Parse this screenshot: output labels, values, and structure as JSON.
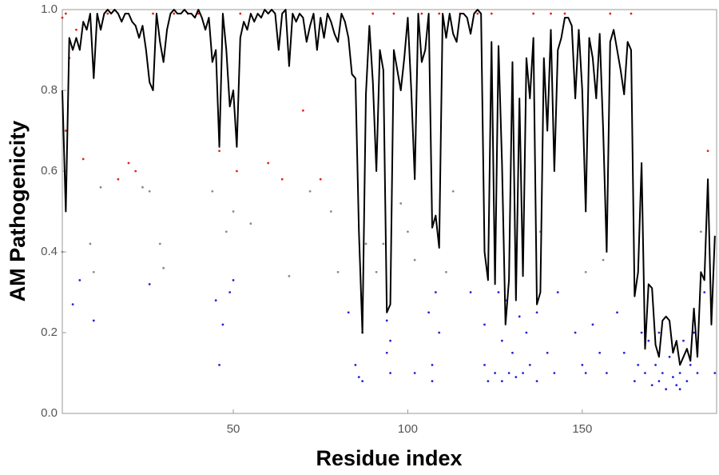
{
  "chart_data": {
    "type": "line_scatter",
    "x_label": "Residue index",
    "y_label": "AM Pathogenicity",
    "xlim": [
      1,
      188.5
    ],
    "ylim": [
      0,
      1
    ],
    "xticks": [
      50,
      100,
      150
    ],
    "yticks": [
      {
        "value": 0,
        "label": "0.0"
      },
      {
        "value": 0.2,
        "label": "0.2"
      },
      {
        "value": 0.4,
        "label": "0.4"
      },
      {
        "value": 0.6,
        "label": "0.6"
      },
      {
        "value": 0.8,
        "label": "0.8"
      },
      {
        "value": 1,
        "label": "1.0"
      }
    ],
    "line": {
      "color": "#000000",
      "x": [
        1,
        2,
        3,
        4,
        5,
        6,
        7,
        8,
        9,
        10,
        11,
        12,
        13,
        14,
        15,
        16,
        17,
        18,
        19,
        20,
        21,
        22,
        23,
        24,
        25,
        26,
        27,
        28,
        29,
        30,
        31,
        32,
        33,
        34,
        35,
        36,
        37,
        38,
        39,
        40,
        41,
        42,
        43,
        44,
        45,
        46,
        47,
        48,
        49,
        50,
        51,
        52,
        53,
        54,
        55,
        56,
        57,
        58,
        59,
        60,
        61,
        62,
        63,
        64,
        65,
        66,
        67,
        68,
        69,
        70,
        71,
        72,
        73,
        74,
        75,
        76,
        77,
        78,
        79,
        80,
        81,
        82,
        83,
        84,
        85,
        86,
        87,
        88,
        89,
        90,
        91,
        92,
        93,
        94,
        95,
        96,
        97,
        98,
        99,
        100,
        101,
        102,
        103,
        104,
        105,
        106,
        107,
        108,
        109,
        110,
        111,
        112,
        113,
        114,
        115,
        116,
        117,
        118,
        119,
        120,
        121,
        122,
        123,
        124,
        125,
        126,
        127,
        128,
        129,
        130,
        131,
        132,
        133,
        134,
        135,
        136,
        137,
        138,
        139,
        140,
        141,
        142,
        143,
        144,
        145,
        146,
        147,
        148,
        149,
        150,
        151,
        152,
        153,
        154,
        155,
        156,
        157,
        158,
        159,
        160,
        161,
        162,
        163,
        164,
        165,
        166,
        167,
        168,
        169,
        170,
        171,
        172,
        173,
        174,
        175,
        176,
        177,
        178,
        179,
        180,
        181,
        182,
        183,
        184,
        185,
        186,
        187,
        188
      ],
      "values": [
        0.8,
        0.5,
        0.93,
        0.9,
        0.93,
        0.9,
        0.97,
        0.95,
        0.99,
        0.83,
        0.99,
        0.95,
        0.99,
        1.0,
        0.99,
        1.0,
        0.99,
        0.97,
        0.99,
        0.99,
        0.97,
        0.96,
        0.93,
        0.96,
        0.9,
        0.82,
        0.8,
        0.99,
        0.92,
        0.87,
        0.95,
        0.99,
        1.0,
        0.99,
        0.99,
        1.0,
        0.99,
        0.99,
        0.98,
        1.0,
        0.98,
        0.95,
        0.98,
        0.87,
        0.9,
        0.66,
        0.99,
        0.9,
        0.76,
        0.8,
        0.66,
        0.93,
        0.97,
        0.95,
        0.99,
        0.97,
        0.99,
        0.98,
        1.0,
        0.99,
        1.0,
        0.99,
        0.9,
        0.99,
        1.0,
        0.86,
        0.99,
        0.97,
        0.99,
        0.98,
        0.92,
        0.96,
        0.99,
        0.9,
        0.98,
        0.93,
        0.99,
        0.97,
        0.94,
        0.92,
        0.99,
        0.97,
        0.93,
        0.84,
        0.83,
        0.45,
        0.2,
        0.79,
        0.96,
        0.82,
        0.6,
        0.9,
        0.85,
        0.25,
        0.27,
        0.9,
        0.85,
        0.8,
        0.88,
        0.98,
        0.8,
        0.58,
        0.99,
        0.87,
        0.9,
        0.99,
        0.46,
        0.49,
        0.41,
        0.99,
        0.93,
        0.99,
        0.94,
        0.92,
        0.99,
        0.99,
        0.98,
        0.94,
        0.99,
        1.0,
        0.99,
        0.4,
        0.33,
        0.92,
        0.32,
        0.91,
        0.62,
        0.22,
        0.33,
        0.87,
        0.28,
        0.78,
        0.34,
        0.88,
        0.78,
        0.93,
        0.27,
        0.3,
        0.88,
        0.7,
        0.95,
        0.6,
        0.9,
        0.93,
        0.98,
        0.98,
        0.96,
        0.78,
        0.95,
        0.8,
        0.5,
        0.93,
        0.88,
        0.78,
        0.94,
        0.7,
        0.4,
        0.92,
        0.95,
        0.9,
        0.85,
        0.79,
        0.92,
        0.9,
        0.29,
        0.35,
        0.62,
        0.16,
        0.32,
        0.31,
        0.17,
        0.14,
        0.23,
        0.24,
        0.23,
        0.15,
        0.18,
        0.12,
        0.14,
        0.16,
        0.13,
        0.26,
        0.14,
        0.35,
        0.33,
        0.58,
        0.22,
        0.44
      ]
    },
    "points": {
      "color_thresholds": [
        0.34,
        0.564
      ],
      "colors": [
        "#2424d8",
        "#8a8a8a",
        "#e82020"
      ],
      "x": [
        1,
        1,
        2,
        2,
        3,
        4,
        5,
        6,
        7,
        9,
        10,
        10,
        12,
        14,
        17,
        20,
        22,
        24,
        26,
        26,
        27,
        29,
        30,
        33,
        37,
        40,
        44,
        45,
        46,
        46,
        47,
        48,
        49,
        50,
        50,
        51,
        52,
        55,
        60,
        64,
        66,
        70,
        72,
        75,
        78,
        80,
        83,
        85,
        86,
        87,
        87,
        88,
        90,
        91,
        93,
        94,
        94,
        95,
        95,
        96,
        98,
        100,
        102,
        102,
        104,
        106,
        107,
        107,
        108,
        109,
        109,
        111,
        113,
        115,
        118,
        120,
        122,
        122,
        123,
        124,
        125,
        126,
        127,
        127,
        128,
        129,
        130,
        131,
        132,
        133,
        134,
        135,
        136,
        137,
        137,
        138,
        140,
        141,
        142,
        143,
        145,
        148,
        150,
        151,
        151,
        153,
        155,
        156,
        157,
        158,
        160,
        162,
        164,
        165,
        166,
        167,
        168,
        169,
        170,
        171,
        172,
        172,
        173,
        174,
        175,
        176,
        177,
        178,
        178,
        179,
        180,
        181,
        182,
        183,
        184,
        185,
        186,
        187,
        188
      ],
      "values": [
        0.98,
        0.4,
        0.99,
        0.7,
        0.88,
        0.27,
        0.95,
        0.33,
        0.63,
        0.42,
        0.35,
        0.23,
        0.56,
        0.99,
        0.58,
        0.62,
        0.6,
        0.56,
        0.32,
        0.55,
        0.99,
        0.42,
        0.36,
        0.99,
        0.99,
        0.99,
        0.55,
        0.28,
        0.12,
        0.65,
        0.22,
        0.45,
        0.3,
        0.5,
        0.33,
        0.6,
        0.99,
        0.47,
        0.62,
        0.58,
        0.34,
        0.75,
        0.55,
        0.58,
        0.5,
        0.35,
        0.25,
        0.12,
        0.09,
        0.2,
        0.08,
        0.42,
        0.99,
        0.35,
        0.42,
        0.23,
        0.15,
        0.1,
        0.18,
        0.99,
        0.52,
        0.45,
        0.1,
        0.38,
        0.99,
        0.25,
        0.12,
        0.08,
        0.3,
        0.2,
        0.99,
        0.35,
        0.55,
        0.99,
        0.3,
        0.99,
        0.12,
        0.22,
        0.08,
        0.99,
        0.1,
        0.3,
        0.08,
        0.18,
        0.28,
        0.1,
        0.15,
        0.09,
        0.24,
        0.1,
        0.2,
        0.12,
        0.99,
        0.08,
        0.25,
        0.45,
        0.15,
        0.99,
        0.1,
        0.3,
        0.99,
        0.2,
        0.12,
        0.1,
        0.35,
        0.22,
        0.15,
        0.38,
        0.1,
        0.99,
        0.25,
        0.15,
        0.99,
        0.08,
        0.12,
        0.2,
        0.1,
        0.18,
        0.07,
        0.12,
        0.08,
        0.2,
        0.1,
        0.06,
        0.14,
        0.09,
        0.07,
        0.1,
        0.06,
        0.18,
        0.08,
        0.12,
        0.2,
        0.1,
        0.45,
        0.3,
        0.65,
        0.28,
        0.1
      ]
    }
  }
}
